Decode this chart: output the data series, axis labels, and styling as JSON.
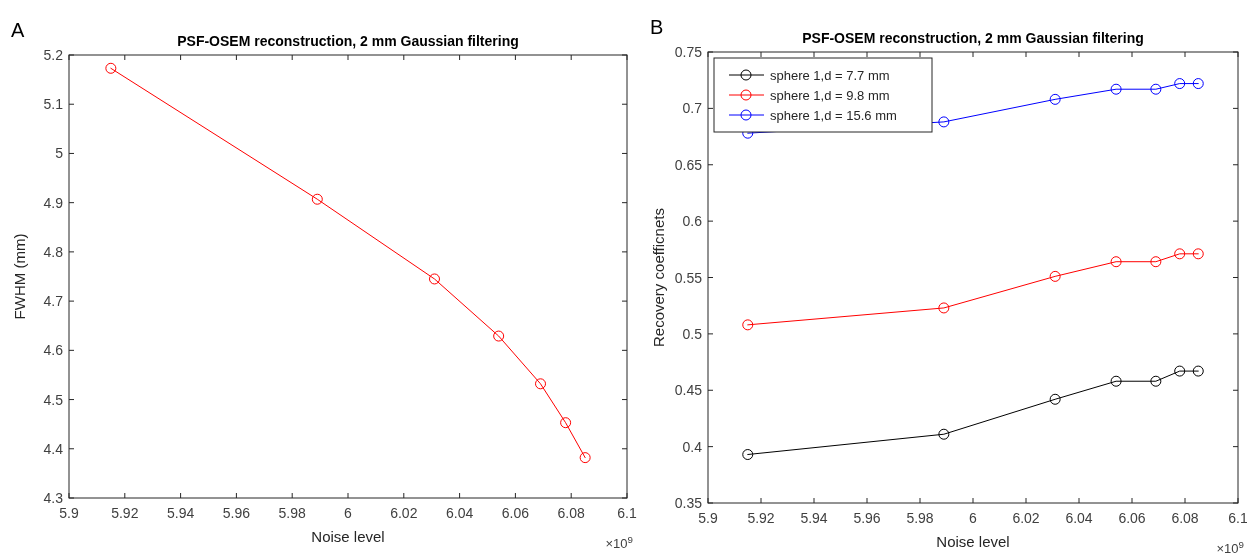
{
  "chart_data": [
    {
      "type": "line",
      "title": "PSF-OSEM reconstruction, 2 mm Gaussian filtering",
      "xlabel": "Noise level",
      "ylabel": "FWHM (mm)",
      "annotations": [
        "A",
        "×10$^{9}$"
      ],
      "x": [
        5.915,
        5.989,
        6.031,
        6.054,
        6.069,
        6.078,
        6.085
      ],
      "series": [
        {
          "color": "#ff0000",
          "values": [
            5.173,
            4.907,
            4.745,
            4.629,
            4.532,
            4.453,
            4.382
          ]
        }
      ],
      "xlim": [
        5.9,
        6.1
      ],
      "xticks": [
        5.9,
        5.92,
        5.94,
        5.96,
        5.98,
        6,
        6.02,
        6.04,
        6.06,
        6.08,
        6.1
      ],
      "ylim": [
        4.3,
        5.2
      ],
      "yticks": [
        4.3,
        4.4,
        4.5,
        4.6,
        4.7,
        4.8,
        4.9,
        5,
        5.1,
        5.2
      ],
      "marker": "circle",
      "line_style": "solid"
    },
    {
      "type": "line",
      "title": "PSF-OSEM reconstruction, 2 mm Gaussian filtering",
      "xlabel": "Noise level",
      "ylabel": "Recovery coefficnets",
      "annotations": [
        "B",
        "×10$^{9}$"
      ],
      "x": [
        5.915,
        5.989,
        6.031,
        6.054,
        6.069,
        6.078,
        6.085
      ],
      "series": [
        {
          "name": "sphere 1,d = 7.7 mm",
          "color": "#000000",
          "values": [
            0.393,
            0.411,
            0.442,
            0.458,
            0.458,
            0.467,
            0.467
          ]
        },
        {
          "name": "sphere 1,d = 9.8 mm",
          "color": "#ff0000",
          "values": [
            0.508,
            0.523,
            0.551,
            0.564,
            0.564,
            0.571,
            0.571
          ]
        },
        {
          "name": "sphere 1,d = 15.6 mm",
          "color": "#0000ff",
          "values": [
            0.678,
            0.688,
            0.708,
            0.717,
            0.717,
            0.722,
            0.722
          ]
        }
      ],
      "xlim": [
        5.9,
        6.1
      ],
      "xticks": [
        5.9,
        5.92,
        5.94,
        5.96,
        5.98,
        6,
        6.02,
        6.04,
        6.06,
        6.08,
        6.1
      ],
      "ylim": [
        0.35,
        0.75
      ],
      "yticks": [
        0.35,
        0.4,
        0.45,
        0.5,
        0.55,
        0.6,
        0.65,
        0.7,
        0.75
      ],
      "marker": "circle",
      "line_style": "solid",
      "legend": "top left"
    }
  ]
}
